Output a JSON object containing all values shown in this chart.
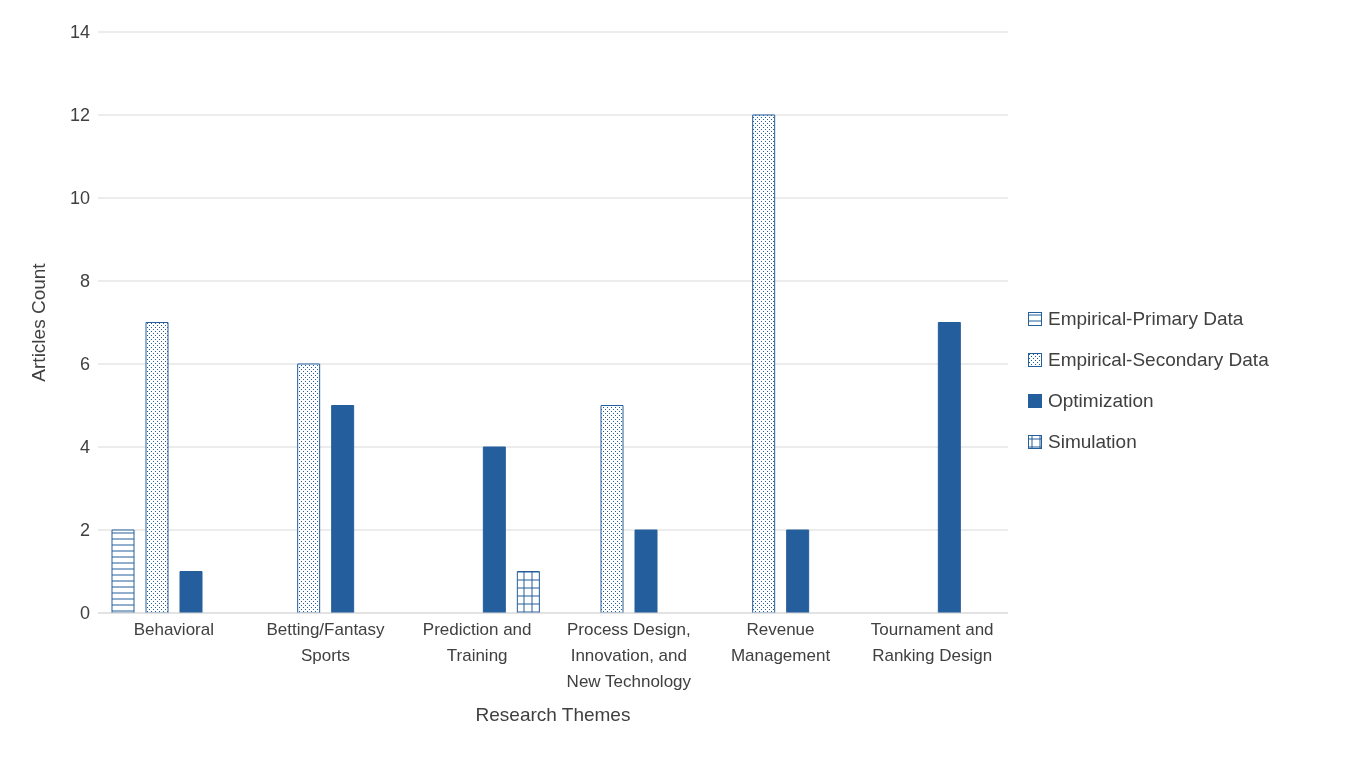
{
  "chart_data": {
    "type": "bar",
    "xlabel": "Research Themes",
    "ylabel": "Articles Count",
    "categories": [
      "Behavioral",
      "Betting/Fantasy Sports",
      "Prediction and Training",
      "Process Design, Innovation, and New Technology",
      "Revenue Management",
      "Tournament and Ranking Design"
    ],
    "series": [
      {
        "name": "Empirical-Primary Data",
        "color": "#255e9c",
        "values": [
          2,
          0,
          0,
          0,
          0,
          0
        ]
      },
      {
        "name": "Empirical-Secondary Data",
        "color": "#255e9c",
        "values": [
          7,
          6,
          0,
          5,
          12,
          0
        ]
      },
      {
        "name": "Optimization",
        "color": "#255e9c",
        "values": [
          1,
          5,
          4,
          2,
          2,
          7
        ]
      },
      {
        "name": "Simulation",
        "color": "#255e9c",
        "values": [
          0,
          0,
          1,
          0,
          0,
          0
        ]
      }
    ],
    "ylim": [
      0,
      14
    ],
    "yticks": [
      0,
      2,
      4,
      6,
      8,
      10,
      12,
      14
    ],
    "grid": "y",
    "legend": "right"
  }
}
